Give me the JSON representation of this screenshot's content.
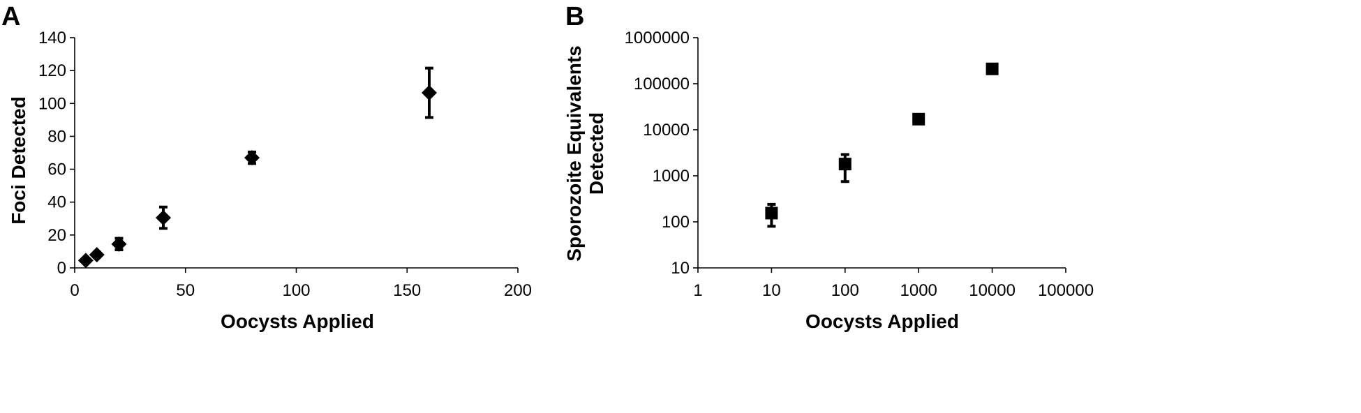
{
  "panels": [
    {
      "label": "A",
      "xlabel": "Oocysts Applied",
      "ylabel": "Foci Detected",
      "x_ticks": [
        "0",
        "50",
        "100",
        "150",
        "200"
      ],
      "y_ticks": [
        "0",
        "20",
        "40",
        "60",
        "80",
        "100",
        "120",
        "140"
      ]
    },
    {
      "label": "B",
      "xlabel": "Oocysts Applied",
      "ylabel_line1": "Sporozoite Equivalents",
      "ylabel_line2": "Detected",
      "x_ticks": [
        "1",
        "10",
        "100",
        "1000",
        "10000",
        "100000"
      ],
      "y_ticks": [
        "10",
        "100",
        "1000",
        "10000",
        "100000",
        "1000000"
      ]
    }
  ],
  "chart_data": [
    {
      "type": "scatter",
      "panel": "A",
      "xlabel": "Oocysts Applied",
      "ylabel": "Foci Detected",
      "xlim": [
        0,
        200
      ],
      "ylim": [
        0,
        140
      ],
      "x_scale": "linear",
      "y_scale": "linear",
      "marker": "diamond",
      "grid": false,
      "points": [
        {
          "x": 5,
          "y": 4.5,
          "err": 1
        },
        {
          "x": 10,
          "y": 8,
          "err": 1.5
        },
        {
          "x": 20,
          "y": 14.5,
          "err": 3.5
        },
        {
          "x": 40,
          "y": 30.5,
          "err": 6.5
        },
        {
          "x": 80,
          "y": 67,
          "err": 3.5
        },
        {
          "x": 160,
          "y": 106.5,
          "err": 15
        }
      ]
    },
    {
      "type": "scatter",
      "panel": "B",
      "xlabel": "Oocysts Applied",
      "ylabel": "Sporozoite Equivalents Detected",
      "xlim": [
        1,
        100000
      ],
      "ylim": [
        10,
        1000000
      ],
      "x_scale": "log",
      "y_scale": "log",
      "marker": "square",
      "grid": false,
      "points": [
        {
          "x": 10,
          "y": 155,
          "lo": 80,
          "hi": 240
        },
        {
          "x": 100,
          "y": 1800,
          "lo": 750,
          "hi": 2900
        },
        {
          "x": 1000,
          "y": 17000,
          "lo": 15000,
          "hi": 19000
        },
        {
          "x": 10000,
          "y": 210000,
          "lo": 190000,
          "hi": 230000
        }
      ]
    }
  ]
}
